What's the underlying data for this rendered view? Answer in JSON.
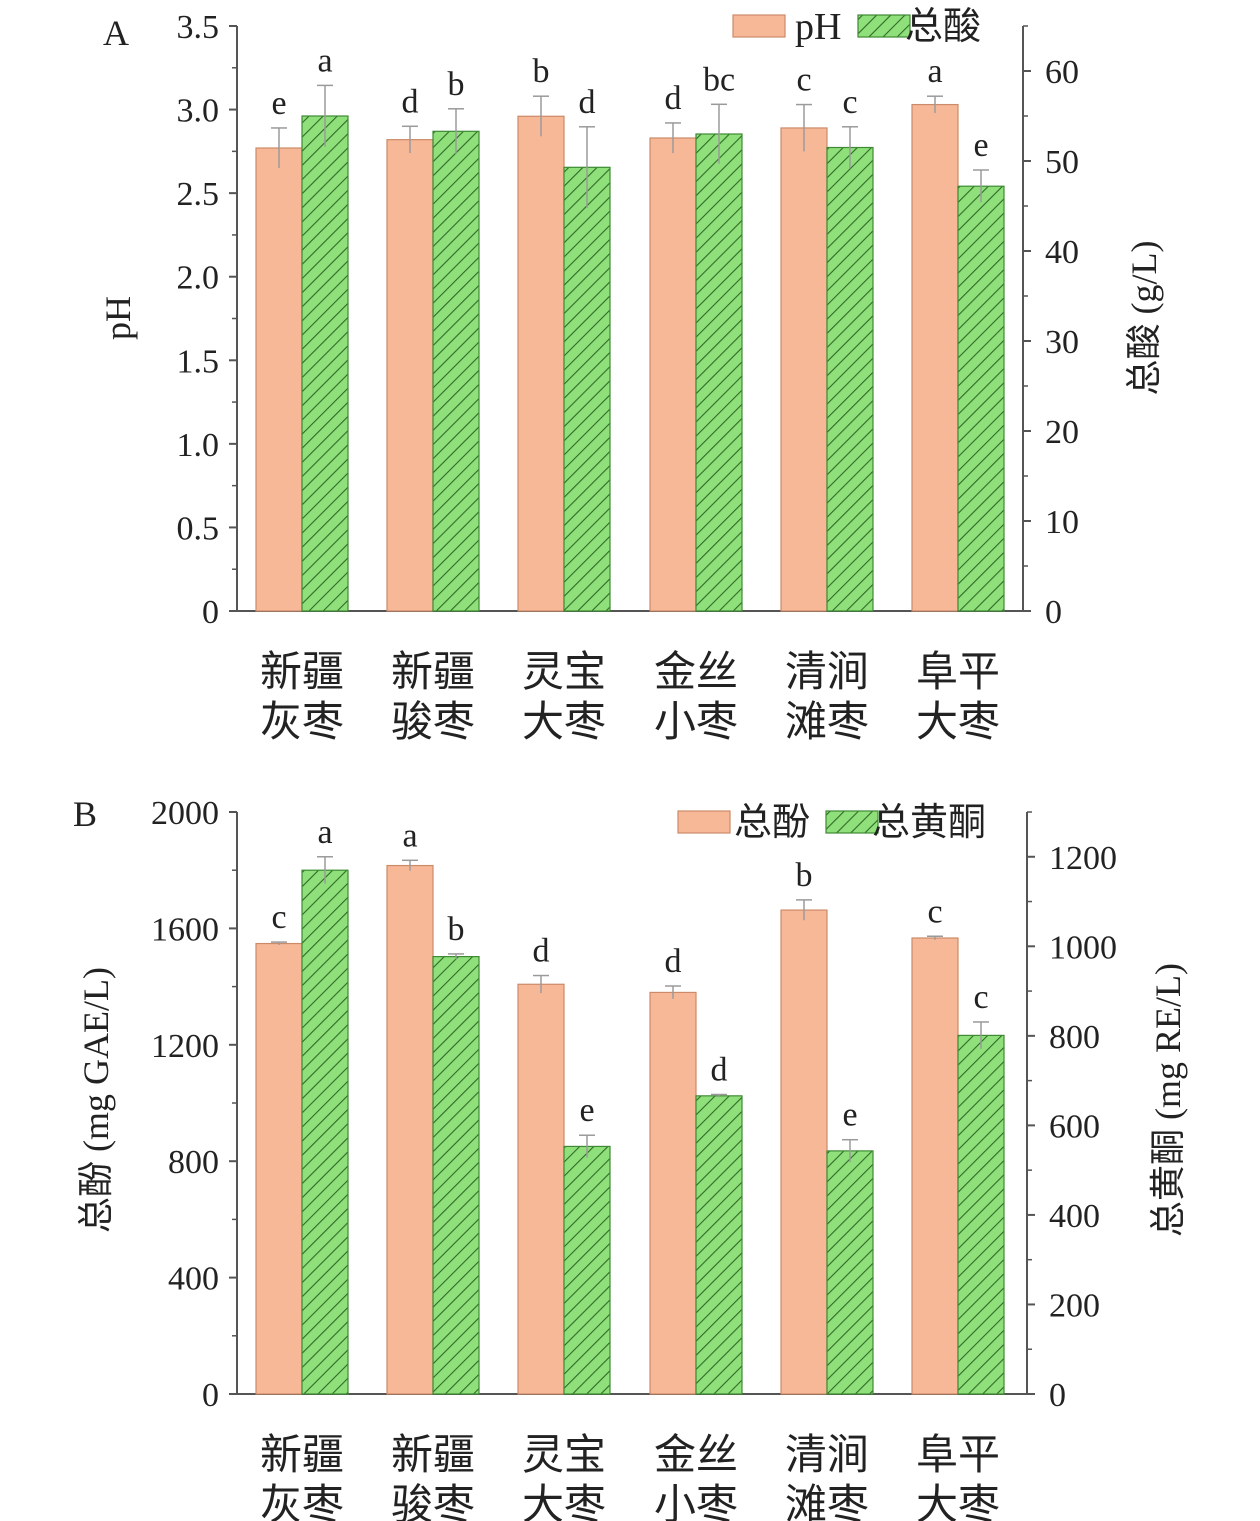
{
  "colors": {
    "bar1_fill": "#f7b898",
    "bar1_stroke": "#cc8a68",
    "bar2_fill": "#8fe07a",
    "bar2_stroke": "#3e8a33",
    "hatch": "#2f6a28",
    "axis": "#555555",
    "error": "#9a9a9a"
  },
  "chart_data": [
    {
      "type": "bar",
      "panel_label": "A",
      "categories": [
        [
          "新疆",
          "灰枣"
        ],
        [
          "新疆",
          "骏枣"
        ],
        [
          "灵宝",
          "大枣"
        ],
        [
          "金丝",
          "小枣"
        ],
        [
          "清涧",
          "滩枣"
        ],
        [
          "阜平",
          "大枣"
        ]
      ],
      "legend": [
        "pH",
        "总酸"
      ],
      "legend_position": "top-right",
      "ylabel_left": "pH",
      "ylabel_right": "总酸 (g/L)",
      "ylim_left": [
        0,
        3.5
      ],
      "ylim_right": [
        0,
        65
      ],
      "yticks_left": [
        "0",
        "0.5",
        "1.0",
        "1.5",
        "2.0",
        "2.5",
        "3.0",
        "3.5"
      ],
      "yticks_left_values": [
        0,
        0.5,
        1.0,
        1.5,
        2.0,
        2.5,
        3.0,
        3.5
      ],
      "yticks_right": [
        "0",
        "10",
        "20",
        "30",
        "40",
        "50",
        "60"
      ],
      "yticks_right_values": [
        0,
        10,
        20,
        30,
        40,
        50,
        60
      ],
      "series": [
        {
          "name": "pH",
          "axis": "left",
          "values": [
            2.77,
            2.82,
            2.96,
            2.83,
            2.89,
            3.03
          ],
          "errors": [
            0.12,
            0.08,
            0.12,
            0.09,
            0.14,
            0.05
          ],
          "letters": [
            "e",
            "d",
            "b",
            "d",
            "c",
            "a"
          ]
        },
        {
          "name": "总酸",
          "axis": "right",
          "values": [
            55.0,
            53.3,
            49.3,
            53.0,
            51.5,
            47.2
          ],
          "errors": [
            3.4,
            2.5,
            4.5,
            3.3,
            2.3,
            1.8
          ],
          "letters": [
            "a",
            "b",
            "d",
            "bc",
            "c",
            "e"
          ]
        }
      ]
    },
    {
      "type": "bar",
      "panel_label": "B",
      "categories": [
        [
          "新疆",
          "灰枣"
        ],
        [
          "新疆",
          "骏枣"
        ],
        [
          "灵宝",
          "大枣"
        ],
        [
          "金丝",
          "小枣"
        ],
        [
          "清涧",
          "滩枣"
        ],
        [
          "阜平",
          "大枣"
        ]
      ],
      "legend": [
        "总酚",
        "总黄酮"
      ],
      "legend_position": "top-right",
      "ylabel_left": "总酚 (mg GAE/L)",
      "ylabel_right": "总黄酮 (mg RE/L)",
      "ylim_left": [
        0,
        2000
      ],
      "ylim_right": [
        0,
        1300
      ],
      "yticks_left": [
        "0",
        "400",
        "800",
        "1200",
        "1600",
        "2000"
      ],
      "yticks_left_values": [
        0,
        400,
        800,
        1200,
        1600,
        2000
      ],
      "yticks_right": [
        "0",
        "200",
        "400",
        "600",
        "800",
        "1000",
        "1200"
      ],
      "yticks_right_values": [
        0,
        200,
        400,
        600,
        800,
        1000,
        1200
      ],
      "series": [
        {
          "name": "总酚",
          "axis": "left",
          "values": [
            1548,
            1816,
            1408,
            1380,
            1663,
            1567
          ],
          "errors": [
            5,
            18,
            30,
            22,
            35,
            6
          ],
          "letters": [
            "c",
            "a",
            "d",
            "d",
            "b",
            "c"
          ]
        },
        {
          "name": "总黄酮",
          "axis": "right",
          "values": [
            1170,
            977,
            553,
            666,
            543,
            801
          ],
          "errors": [
            30,
            6,
            25,
            3,
            25,
            30
          ],
          "letters": [
            "a",
            "b",
            "e",
            "d",
            "e",
            "c"
          ]
        }
      ]
    }
  ]
}
